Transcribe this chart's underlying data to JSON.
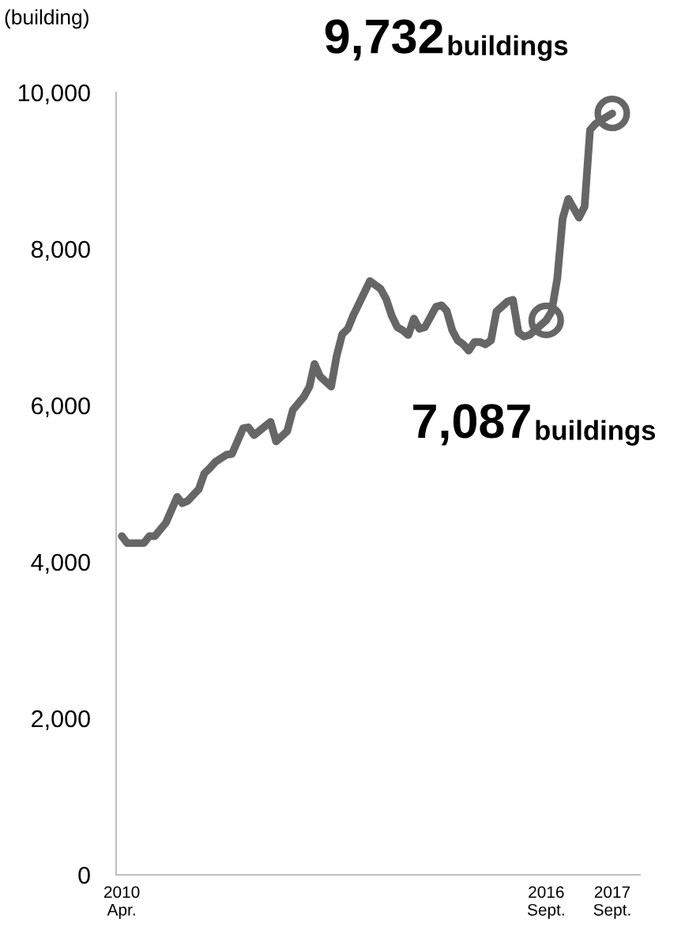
{
  "chart_data": {
    "type": "line",
    "ylabel": "(building)",
    "x": [
      "2010-04",
      "2010-05",
      "2010-08",
      "2010-09",
      "2010-10",
      "2010-12",
      "2011-02",
      "2011-03",
      "2011-04",
      "2011-06",
      "2011-07",
      "2011-08",
      "2011-09",
      "2011-11",
      "2011-12",
      "2012-02",
      "2012-03",
      "2012-04",
      "2012-07",
      "2012-08",
      "2012-10",
      "2012-11",
      "2013-01",
      "2013-02",
      "2013-03",
      "2013-04",
      "2013-06",
      "2013-07",
      "2013-08",
      "2013-09",
      "2013-10",
      "2014-01",
      "2014-03",
      "2014-04",
      "2014-05",
      "2014-06",
      "2014-07",
      "2014-08",
      "2014-09",
      "2014-10",
      "2014-11",
      "2015-01",
      "2015-02",
      "2015-03",
      "2015-04",
      "2015-05",
      "2015-06",
      "2015-07",
      "2015-08",
      "2015-09",
      "2015-10",
      "2015-11",
      "2015-12",
      "2016-02",
      "2016-03",
      "2016-04",
      "2016-05",
      "2016-06",
      "2016-09",
      "2016-10",
      "2016-11",
      "2016-12",
      "2017-01",
      "2017-03",
      "2017-04",
      "2017-05",
      "2017-06",
      "2017-09"
    ],
    "series": [
      {
        "color": "#666666",
        "marker": "none",
        "values": [
          4330,
          4240,
          4240,
          4330,
          4330,
          4500,
          4830,
          4750,
          4780,
          4930,
          5130,
          5200,
          5280,
          5370,
          5380,
          5710,
          5720,
          5620,
          5790,
          5540,
          5670,
          5940,
          6110,
          6240,
          6530,
          6370,
          6240,
          6630,
          6910,
          6980,
          7150,
          7590,
          7490,
          7360,
          7150,
          7000,
          6960,
          6900,
          7110,
          6980,
          7000,
          7260,
          7280,
          7210,
          6960,
          6830,
          6780,
          6700,
          6810,
          6810,
          6780,
          6830,
          7200,
          7330,
          7350,
          6930,
          6880,
          6900,
          7087,
          7200,
          7620,
          8390,
          8640,
          8400,
          8540,
          9520,
          9600,
          9732
        ]
      },
      {
        "type": "scatter",
        "color": "#666666",
        "marker": "circle",
        "x": [
          "2016-09",
          "2017-09"
        ],
        "values": [
          7087,
          9732
        ]
      }
    ],
    "annotations": [
      {
        "text": "9,732buildings",
        "x": "2017-09",
        "y": 9732
      },
      {
        "text": "7,087buildings",
        "x": "2016-09",
        "y": 7087
      }
    ],
    "xlim": [
      "2010-03",
      "2018-02"
    ],
    "xticks": [
      {
        "value": "2010-04",
        "label": "2010\nApr."
      },
      {
        "value": "2016-09",
        "label": "2016\nSept."
      },
      {
        "value": "2017-09",
        "label": "2017\nSept."
      }
    ],
    "ylim": [
      0,
      10000
    ],
    "yticks": [
      {
        "value": 0,
        "label": "0"
      },
      {
        "value": 2000,
        "label": "2,000"
      },
      {
        "value": 4000,
        "label": "4,000"
      },
      {
        "value": 6000,
        "label": "6,000"
      },
      {
        "value": 8000,
        "label": "8,000"
      },
      {
        "value": 10000,
        "label": "10,000"
      }
    ],
    "grid": false,
    "legend": false
  }
}
